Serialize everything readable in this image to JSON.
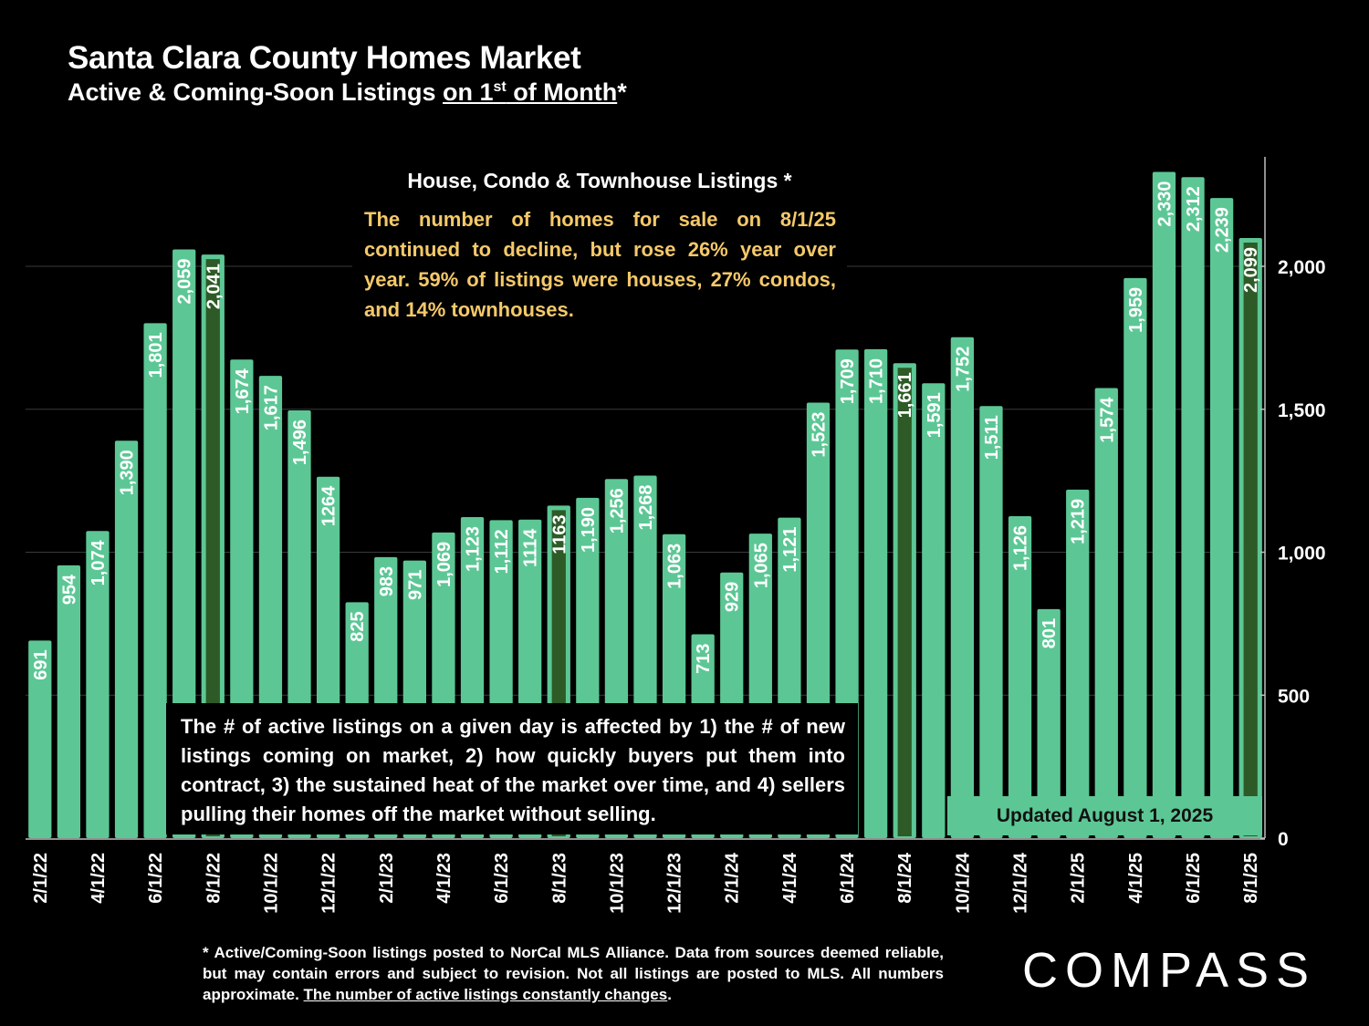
{
  "header": {
    "title": "Santa Clara County Homes Market",
    "subtitle_prefix": "Active & Coming-Soon Listings ",
    "subtitle_underlined": "on 1",
    "subtitle_sup": "st",
    "subtitle_underlined_end": " of Month",
    "subtitle_suffix": "*"
  },
  "annotation_top": {
    "heading": "House, Condo & Townhouse Listings *",
    "body": "The number of homes for sale on 8/1/25 continued to decline, but rose 26% year over year. 59% of listings were houses, 27% condos, and 14% townhouses."
  },
  "annotation_bottom": {
    "body": "The # of active listings on a given day is affected by 1) the # of new listings coming on market, 2) how quickly buyers put them into contract, 3) the sustained heat of the market over time, and 4) sellers pulling their homes off the market without selling."
  },
  "updated_badge": "Updated August 1, 2025",
  "footnote": {
    "text": "* Active/Coming-Soon listings posted to NorCal MLS Alliance.  Data from sources deemed reliable, but may contain errors and subject to revision.  Not all listings are posted to MLS. All numbers approximate. ",
    "underlined": "The number of active listings constantly changes",
    "end": "."
  },
  "logo": {
    "text": "COMPASS"
  },
  "colors": {
    "bar": "#5cc795",
    "bar_highlight": "#2d5a26",
    "bar_highlight_border": "#5cc795",
    "background": "#000000",
    "annotation_text": "#f5c96a",
    "gridline": "#3a3a3a"
  },
  "chart_data": {
    "type": "bar",
    "title": "House, Condo & Townhouse Listings",
    "categories": [
      "2/1/22",
      "3/1/22",
      "4/1/22",
      "5/1/22",
      "6/1/22",
      "7/1/22",
      "8/1/22",
      "9/1/22",
      "10/1/22",
      "11/1/22",
      "12/1/22",
      "1/1/23",
      "2/1/23",
      "3/1/23",
      "4/1/23",
      "5/1/23",
      "6/1/23",
      "7/1/23",
      "8/1/23",
      "9/1/23",
      "10/1/23",
      "11/1/23",
      "12/1/23",
      "1/1/24",
      "2/1/24",
      "3/1/24",
      "4/1/24",
      "5/1/24",
      "6/1/24",
      "7/1/24",
      "8/1/24",
      "9/1/24",
      "10/1/24",
      "11/1/24",
      "12/1/24",
      "1/1/25",
      "2/1/25",
      "3/1/25",
      "4/1/25",
      "5/1/25",
      "6/1/25",
      "7/1/25",
      "8/1/25"
    ],
    "values": [
      691,
      954,
      1074,
      1390,
      1801,
      2059,
      2041,
      1674,
      1617,
      1496,
      1264,
      825,
      983,
      971,
      1069,
      1123,
      1112,
      1114,
      1163,
      1190,
      1256,
      1268,
      1063,
      713,
      929,
      1065,
      1121,
      1523,
      1709,
      1710,
      1661,
      1591,
      1752,
      1511,
      1126,
      801,
      1219,
      1574,
      1959,
      2330,
      2312,
      2239,
      2099
    ],
    "value_labels": [
      "691",
      "954",
      "1,074",
      "1,390",
      "1,801",
      "2,059",
      "2,041",
      "1,674",
      "1,617",
      "1,496",
      "1264",
      "825",
      "983",
      "971",
      "1,069",
      "1,123",
      "1,112",
      "1114",
      "1163",
      "1,190",
      "1,256",
      "1,268",
      "1,063",
      "713",
      "929",
      "1,065",
      "1,121",
      "1,523",
      "1,709",
      "1,710",
      "1,661",
      "1,591",
      "1,752",
      "1,511",
      "1,126",
      "801",
      "1,219",
      "1,574",
      "1,959",
      "2,330",
      "2,312",
      "2,239",
      "2,099"
    ],
    "highlight_categories": [
      "8/1/22",
      "8/1/23",
      "8/1/24",
      "8/1/25"
    ],
    "x_tick_labels": [
      "2/1/22",
      "4/1/22",
      "6/1/22",
      "8/1/22",
      "10/1/22",
      "12/1/22",
      "2/1/23",
      "4/1/23",
      "6/1/23",
      "8/1/23",
      "10/1/23",
      "12/1/23",
      "2/1/24",
      "4/1/24",
      "6/1/24",
      "8/1/24",
      "10/1/24",
      "12/1/24",
      "2/1/25",
      "4/1/25",
      "6/1/25",
      "8/1/25"
    ],
    "y_ticks": [
      0,
      500,
      1000,
      1500,
      2000
    ],
    "y_tick_labels": [
      "0",
      "500",
      "1,000",
      "1,500",
      "2,000"
    ],
    "ylim": [
      0,
      2400
    ],
    "y_axis_position": "right",
    "grid": true,
    "legend": "none",
    "xlabel": "",
    "ylabel": ""
  }
}
